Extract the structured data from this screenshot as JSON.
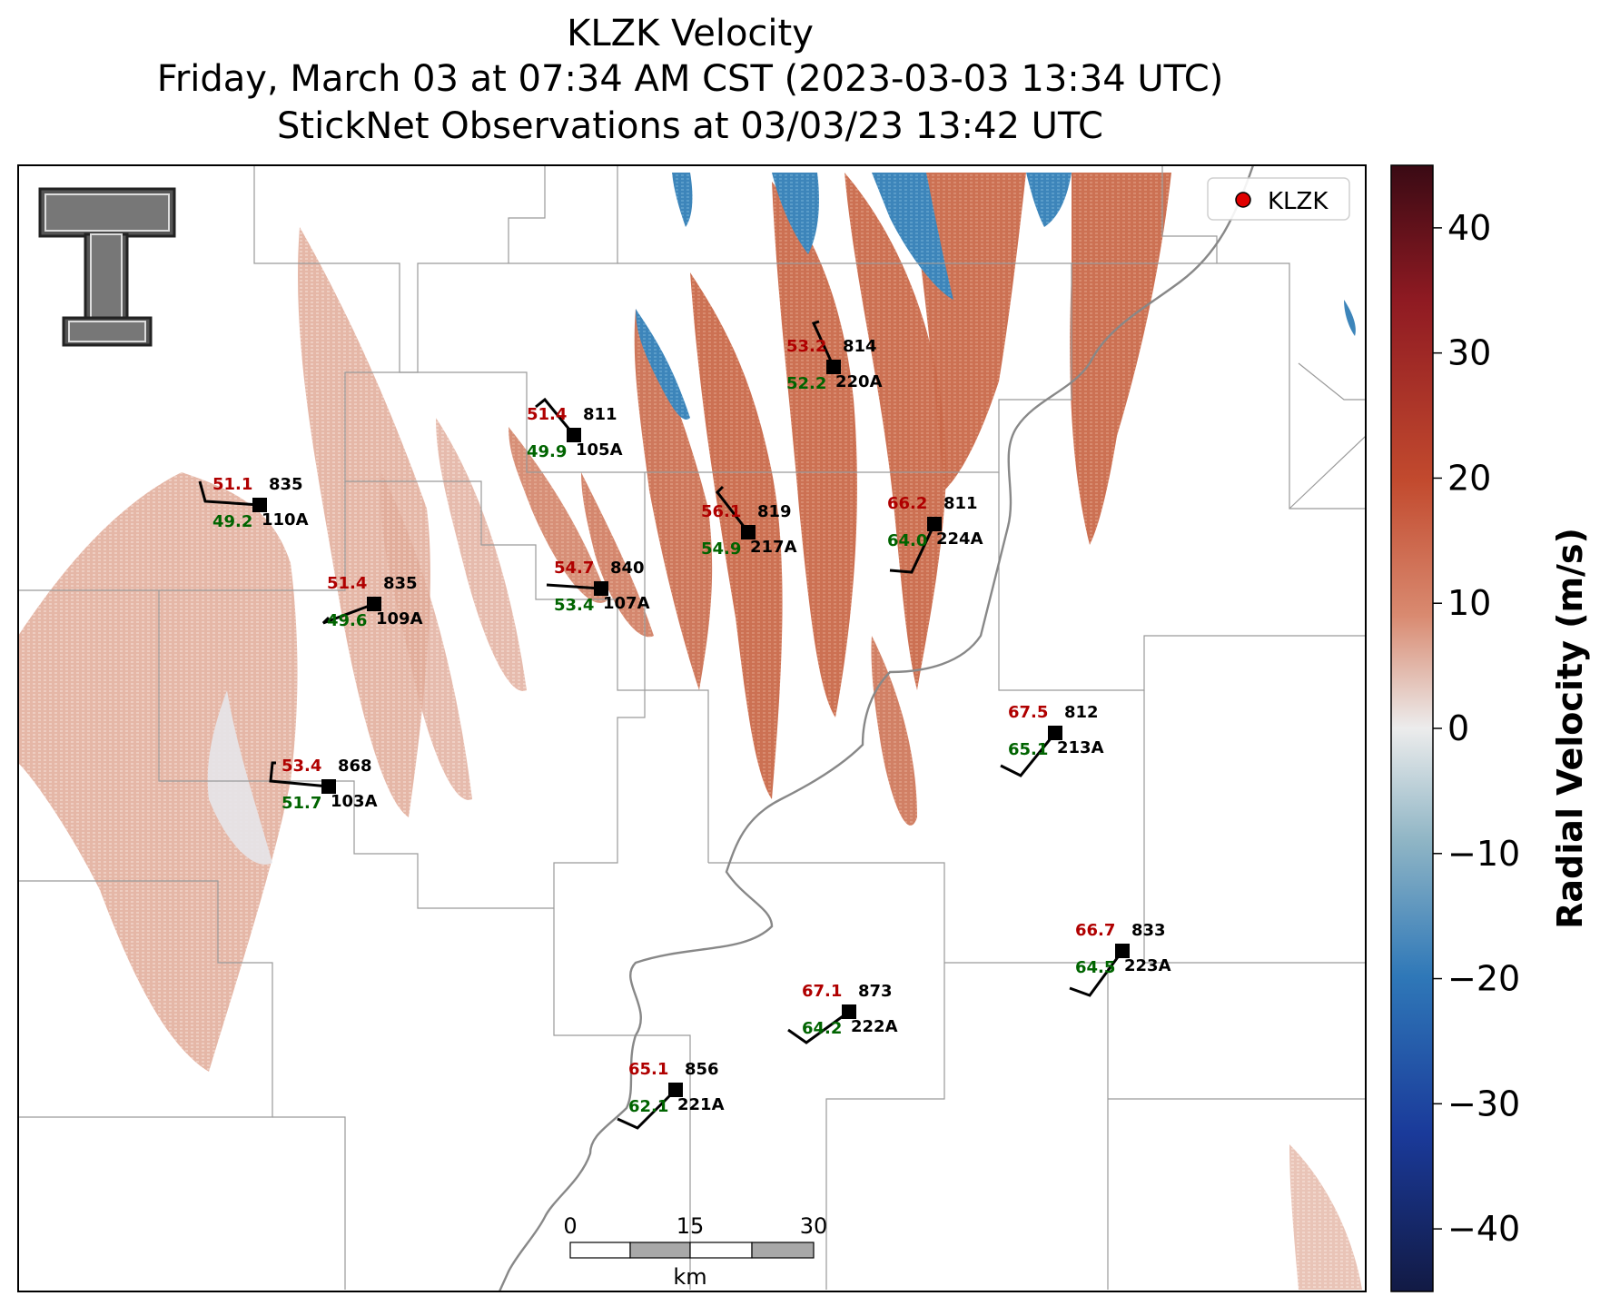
{
  "title": {
    "line1": "KLZK Velocity",
    "line2": "Friday, March 03 at 07:34 AM CST (2023-03-03 13:34 UTC)",
    "line3": "StickNet Observations at 03/03/23 13:42 UTC"
  },
  "legend": {
    "label": "KLZK",
    "marker_color": "#e00000"
  },
  "colorbar": {
    "label": "Radial Velocity (m/s)",
    "range": [
      -45,
      45
    ],
    "ticks": [
      "40",
      "30",
      "20",
      "10",
      "0",
      "−10",
      "−20",
      "−30",
      "−40"
    ],
    "colors": [
      "#3a0a14",
      "#8f1a22",
      "#c24a2e",
      "#d98a70",
      "#ececec",
      "#8fb5c5",
      "#2f78b8",
      "#1a3a9a",
      "#121a44"
    ]
  },
  "scalebar": {
    "ticks": [
      "0",
      "15",
      "30"
    ],
    "unit": "km"
  },
  "logo": {
    "name": "texas-tech-logo"
  },
  "stations": [
    {
      "id": "103A",
      "red": "53.4",
      "green": "51.7",
      "black": "868"
    },
    {
      "id": "105A",
      "red": "51.4",
      "green": "49.9",
      "black": "811"
    },
    {
      "id": "107A",
      "red": "54.7",
      "green": "53.4",
      "black": "840"
    },
    {
      "id": "109A",
      "red": "51.4",
      "green": "49.6",
      "black": "835"
    },
    {
      "id": "110A",
      "red": "51.1",
      "green": "49.2",
      "black": "835"
    },
    {
      "id": "213A",
      "red": "67.5",
      "green": "65.1",
      "black": "812"
    },
    {
      "id": "217A",
      "red": "56.1",
      "green": "54.9",
      "black": "819"
    },
    {
      "id": "220A",
      "red": "53.2",
      "green": "52.2",
      "black": "814"
    },
    {
      "id": "221A",
      "red": "65.1",
      "green": "62.1",
      "black": "856"
    },
    {
      "id": "222A",
      "red": "67.1",
      "green": "64.2",
      "black": "873"
    },
    {
      "id": "223A",
      "red": "66.7",
      "green": "64.5",
      "black": "833"
    },
    {
      "id": "224A",
      "red": "66.2",
      "green": "64.0",
      "black": "811"
    }
  ]
}
